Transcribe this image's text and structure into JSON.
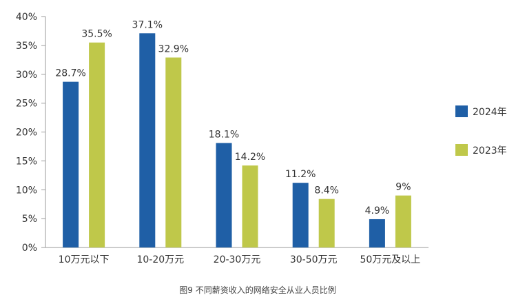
{
  "chart_data": {
    "type": "bar",
    "title": "",
    "caption": "图9 不同薪资收入的网络安全从业人员比例",
    "xlabel": "",
    "ylabel": "",
    "categories": [
      "10万元以下",
      "10-20万元",
      "20-30万元",
      "30-50万元",
      "50万元及以上"
    ],
    "series": [
      {
        "name": "2024年",
        "color": "#1f5fa6",
        "values": [
          28.7,
          37.1,
          18.1,
          11.2,
          4.9
        ]
      },
      {
        "name": "2023年",
        "color": "#bfc84a",
        "values": [
          35.5,
          32.9,
          14.2,
          8.4,
          9
        ]
      }
    ],
    "data_labels": [
      [
        "28.7%",
        "37.1%",
        "18.1%",
        "11.2%",
        "4.9%"
      ],
      [
        "35.5%",
        "32.9%",
        "14.2%",
        "8.4%",
        "9%"
      ]
    ],
    "ylim": [
      0,
      40
    ],
    "yticks": [
      0,
      5,
      10,
      15,
      20,
      25,
      30,
      35,
      40
    ],
    "ytick_labels": [
      "0%",
      "5%",
      "10%",
      "15%",
      "20%",
      "25%",
      "30%",
      "35%",
      "40%"
    ],
    "grid": false,
    "legend_position": "right"
  }
}
